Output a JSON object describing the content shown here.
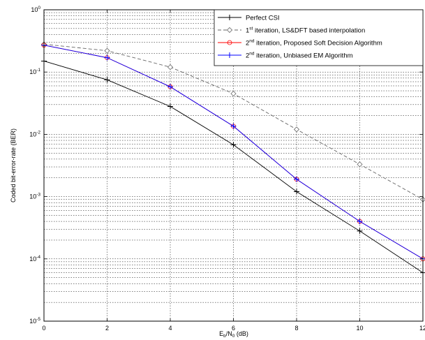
{
  "chart_data": {
    "type": "line",
    "title": "",
    "xlabel": {
      "main": "E",
      "sub1": "b",
      "mid": "/N",
      "sub2": "0",
      "tail": " (dB)"
    },
    "ylabel": "Coded bit-error-rate (BER)",
    "x": [
      0,
      2,
      4,
      6,
      8,
      10,
      12
    ],
    "xlim": [
      0,
      12
    ],
    "ylim": [
      1e-05,
      1
    ],
    "yscale": "log",
    "xticks": [
      "0",
      "2",
      "4",
      "6",
      "8",
      "10",
      "12"
    ],
    "yticks": [
      {
        "base": "10",
        "exp": "-5",
        "value": 1e-05
      },
      {
        "base": "10",
        "exp": "-4",
        "value": 0.0001
      },
      {
        "base": "10",
        "exp": "-3",
        "value": 0.001
      },
      {
        "base": "10",
        "exp": "-2",
        "value": 0.01
      },
      {
        "base": "10",
        "exp": "-1",
        "value": 0.1
      },
      {
        "base": "10",
        "exp": "0",
        "value": 1
      }
    ],
    "grid": true,
    "legend_position": "top-right",
    "series": [
      {
        "name": "Perfect CSI",
        "label": {
          "pre": "Perfect CSI",
          "sup": "",
          "post": ""
        },
        "values": [
          0.15,
          0.075,
          0.028,
          0.0068,
          0.0012,
          0.00028,
          6e-05
        ],
        "color": "#000000",
        "line": "solid",
        "marker": "plus"
      },
      {
        "name": "1st iteration, LS&DFT based interpolation",
        "label": {
          "pre": "1",
          "sup": "st",
          "post": " iteration, LS&DFT based interpolation"
        },
        "values": [
          0.28,
          0.22,
          0.12,
          0.045,
          0.012,
          0.0033,
          0.0009
        ],
        "color": "#666666",
        "line": "dashed",
        "marker": "diamond"
      },
      {
        "name": "2nd iteration, Proposed Soft Decision Algorithm",
        "label": {
          "pre": "2",
          "sup": "nd",
          "post": " iteration, Proposed Soft Decision Algorithm"
        },
        "values": [
          0.27,
          0.17,
          0.058,
          0.0135,
          0.0019,
          0.0004,
          0.0001
        ],
        "color": "#ff0000",
        "line": "solid",
        "marker": "circle"
      },
      {
        "name": "2nd iteration, Unbiased EM Algorithm",
        "label": {
          "pre": "2",
          "sup": "nd",
          "post": " iteration, Unbiased EM Algorithm"
        },
        "values": [
          0.27,
          0.17,
          0.058,
          0.0135,
          0.0019,
          0.0004,
          0.0001
        ],
        "color": "#0000ff",
        "line": "solid",
        "marker": "plus"
      }
    ]
  }
}
